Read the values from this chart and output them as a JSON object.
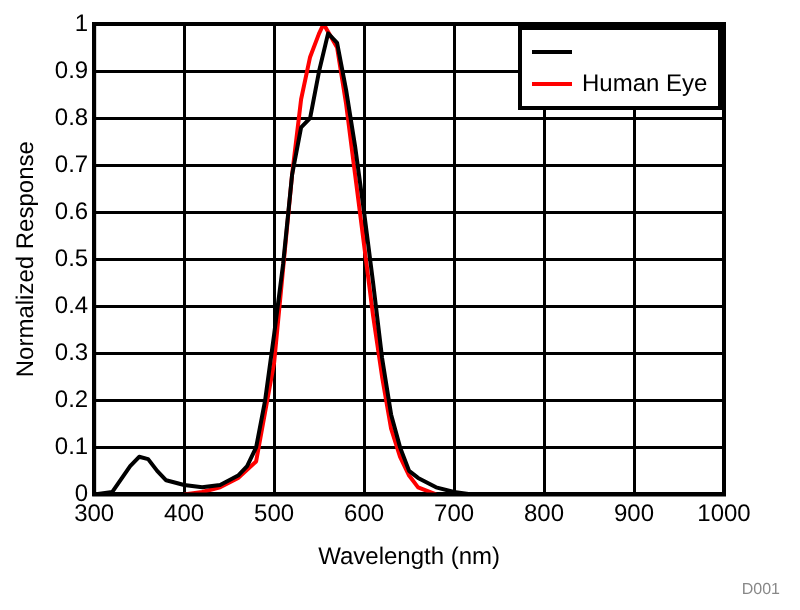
{
  "chart_data": {
    "type": "line",
    "xlabel": "Wavelength (nm)",
    "ylabel": "Normalized Response",
    "xlim": [
      300,
      1000
    ],
    "xticks": [
      300,
      400,
      500,
      600,
      700,
      800,
      900,
      1000
    ],
    "ylim": [
      0,
      1
    ],
    "yticks": [
      0,
      0.1,
      0.2,
      0.3,
      0.4,
      0.5,
      0.6,
      0.7,
      0.8,
      0.9,
      1
    ],
    "grid": true,
    "legend": "top right",
    "marker": "none",
    "line_style": "solid",
    "annotations": [
      "D001"
    ],
    "series": [
      {
        "color": "#000000",
        "x": [
          300,
          320,
          340,
          350,
          360,
          370,
          380,
          400,
          420,
          440,
          460,
          470,
          480,
          490,
          500,
          510,
          520,
          530,
          540,
          550,
          560,
          570,
          580,
          590,
          600,
          610,
          620,
          630,
          640,
          650,
          660,
          680,
          700,
          720,
          760
        ],
        "values": [
          0,
          0.005,
          0.06,
          0.08,
          0.075,
          0.05,
          0.03,
          0.02,
          0.015,
          0.02,
          0.04,
          0.06,
          0.1,
          0.2,
          0.34,
          0.49,
          0.68,
          0.78,
          0.8,
          0.9,
          0.98,
          0.96,
          0.86,
          0.74,
          0.6,
          0.45,
          0.29,
          0.17,
          0.1,
          0.05,
          0.035,
          0.015,
          0.005,
          0,
          0
        ]
      },
      {
        "name": "Human Eye",
        "color": "#ff0000",
        "x": [
          400,
          420,
          440,
          460,
          480,
          500,
          510,
          520,
          530,
          540,
          550,
          555,
          570,
          580,
          590,
          600,
          610,
          620,
          630,
          640,
          650,
          660,
          680
        ],
        "values": [
          0,
          0.005,
          0.015,
          0.035,
          0.07,
          0.28,
          0.48,
          0.68,
          0.84,
          0.93,
          0.98,
          1,
          0.95,
          0.83,
          0.68,
          0.53,
          0.38,
          0.25,
          0.14,
          0.08,
          0.04,
          0.015,
          0
        ]
      }
    ]
  }
}
